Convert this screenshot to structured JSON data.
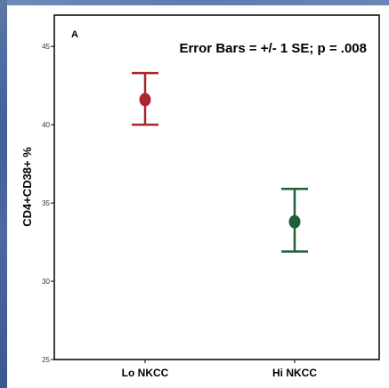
{
  "chart_data": {
    "type": "errorbar",
    "panel_label": "A",
    "annotation": "Error Bars = +/- 1 SE; p = .008",
    "xlabel": "",
    "ylabel": "CD4+CD38+ %",
    "categories": [
      "Lo NKCC",
      "Hi NKCC"
    ],
    "means": [
      41.6,
      33.8
    ],
    "upper": [
      43.3,
      35.9
    ],
    "lower": [
      40.0,
      31.9
    ],
    "colors": [
      "#a8262d",
      "#1f5e38"
    ],
    "ylim": [
      25,
      47
    ],
    "yticks": [
      "25",
      "30",
      "35",
      "40",
      "45"
    ],
    "grid": false
  }
}
